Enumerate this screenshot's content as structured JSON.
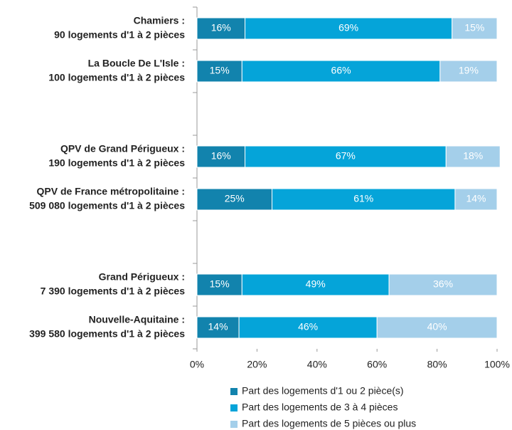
{
  "chart_data": {
    "type": "stacked-bar-horizontal",
    "categories": [
      [
        "Chamiers :",
        "90 logements d'1 à 2 pièces"
      ],
      [
        "La Boucle De L'Isle :",
        "100 logements d'1 à 2 pièces"
      ],
      null,
      [
        "QPV de Grand Périgueux :",
        "190 logements d'1 à 2 pièces"
      ],
      [
        "QPV de France métropolitaine :",
        "509 080 logements d'1 à 2 pièces"
      ],
      null,
      [
        "Grand Périgueux :",
        "7 390 logements d'1 à 2 pièces"
      ],
      [
        "Nouvelle-Aquitaine :",
        "399 580 logements d'1 à 2 pièces"
      ]
    ],
    "series": [
      {
        "name": "Part des logements d'1 ou 2 pièce(s)",
        "color": "#1283ad",
        "values": [
          16,
          15,
          null,
          16,
          25,
          null,
          15,
          14
        ],
        "value_labels": [
          "16%",
          "15%",
          null,
          "16%",
          "25%",
          null,
          "15%",
          "14%"
        ]
      },
      {
        "name": "Part des logements de 3 à 4 pièces",
        "color": "#05a4d9",
        "values": [
          69,
          66,
          null,
          67,
          61,
          null,
          49,
          46
        ],
        "value_labels": [
          "69%",
          "66%",
          null,
          "67%",
          "61%",
          null,
          "49%",
          "46%"
        ]
      },
      {
        "name": "Part des logements de 5 pièces ou plus",
        "color": "#a4cfea",
        "values": [
          15,
          19,
          null,
          18,
          14,
          null,
          36,
          40
        ],
        "value_labels": [
          "15%",
          "19%",
          null,
          "18%",
          "14%",
          null,
          "36%",
          "40%"
        ]
      }
    ],
    "xlim": [
      0,
      100
    ],
    "xticks": [
      {
        "value": 0,
        "label": "0%"
      },
      {
        "value": 20,
        "label": "20%"
      },
      {
        "value": 40,
        "label": "40%"
      },
      {
        "value": 60,
        "label": "60%"
      },
      {
        "value": 80,
        "label": "80%"
      },
      {
        "value": 100,
        "label": "100%"
      }
    ],
    "legend": "bottom"
  }
}
